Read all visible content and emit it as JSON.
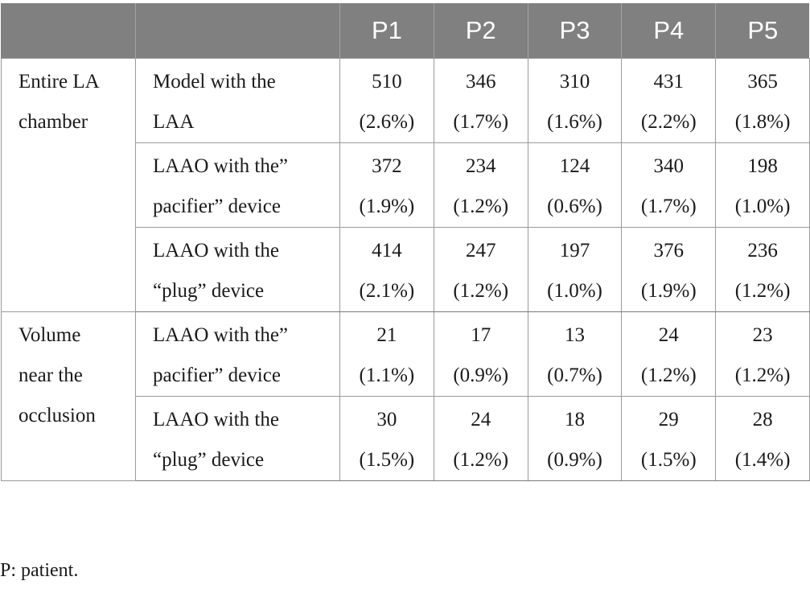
{
  "table": {
    "header": [
      "",
      "",
      "P1",
      "P2",
      "P3",
      "P4",
      "P5"
    ],
    "groups": [
      {
        "label_lines": [
          "Entire LA",
          "chamber"
        ],
        "rows": [
          {
            "condition_lines": [
              "Model with the",
              "LAA"
            ],
            "values": [
              {
                "count": "510",
                "percent": "(2.6%)"
              },
              {
                "count": "346",
                "percent": "(1.7%)"
              },
              {
                "count": "310",
                "percent": "(1.6%)"
              },
              {
                "count": "431",
                "percent": "(2.2%)"
              },
              {
                "count": "365",
                "percent": "(1.8%)"
              }
            ]
          },
          {
            "condition_lines": [
              "LAAO with the”",
              "pacifier” device"
            ],
            "values": [
              {
                "count": "372",
                "percent": "(1.9%)"
              },
              {
                "count": "234",
                "percent": "(1.2%)"
              },
              {
                "count": "124",
                "percent": "(0.6%)"
              },
              {
                "count": "340",
                "percent": "(1.7%)"
              },
              {
                "count": "198",
                "percent": "(1.0%)"
              }
            ]
          },
          {
            "condition_lines": [
              "LAAO with the",
              "“plug” device"
            ],
            "values": [
              {
                "count": "414",
                "percent": "(2.1%)"
              },
              {
                "count": "247",
                "percent": "(1.2%)"
              },
              {
                "count": "197",
                "percent": "(1.0%)"
              },
              {
                "count": "376",
                "percent": "(1.9%)"
              },
              {
                "count": "236",
                "percent": "(1.2%)"
              }
            ]
          }
        ]
      },
      {
        "label_lines": [
          "Volume",
          "near the",
          "occlusion"
        ],
        "rows": [
          {
            "condition_lines": [
              "LAAO with the”",
              "pacifier” device"
            ],
            "values": [
              {
                "count": "21",
                "percent": "(1.1%)"
              },
              {
                "count": "17",
                "percent": "(0.9%)"
              },
              {
                "count": "13",
                "percent": "(0.7%)"
              },
              {
                "count": "24",
                "percent": "(1.2%)"
              },
              {
                "count": "23",
                "percent": "(1.2%)"
              }
            ]
          },
          {
            "condition_lines": [
              "LAAO with the",
              "“plug” device"
            ],
            "values": [
              {
                "count": "30",
                "percent": "(1.5%)"
              },
              {
                "count": "24",
                "percent": "(1.2%)"
              },
              {
                "count": "18",
                "percent": "(0.9%)"
              },
              {
                "count": "29",
                "percent": "(1.5%)"
              },
              {
                "count": "28",
                "percent": "(1.4%)"
              }
            ]
          }
        ]
      }
    ]
  },
  "footnote": "P: patient."
}
